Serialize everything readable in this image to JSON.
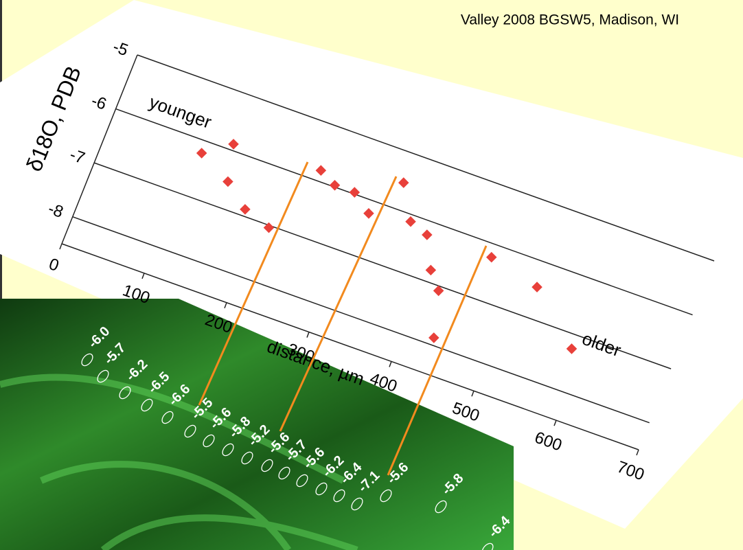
{
  "chart_data": {
    "type": "scatter",
    "title": "Valley 2008 BGSW5, Madison, WI",
    "y_label": "δ18O, PDB",
    "x_label": "distance, µm",
    "annotations": [
      "younger",
      "older"
    ],
    "x": [
      110,
      140,
      150,
      180,
      213,
      244,
      265,
      289,
      313,
      337,
      361,
      384,
      403,
      420,
      435,
      462,
      523,
      586
    ],
    "y": [
      -6.22,
      -5.89,
      -6.53,
      -6.88,
      -7.04,
      -5.81,
      -5.97,
      -5.97,
      -6.23,
      -5.53,
      -6.12,
      -6.24,
      -6.79,
      -7.08,
      -7.87,
      -6.23,
      -6.45,
      -7.25
    ],
    "color": "#e8403a",
    "xlim": [
      0,
      700
    ],
    "ylim": [
      -8.5,
      -5
    ],
    "xticks": [
      0,
      100,
      200,
      300,
      400,
      500,
      600,
      700
    ],
    "yticks": [
      -5,
      -6,
      -7,
      -8
    ],
    "grid": true
  },
  "image": {
    "spot_labels": [
      "-6.0",
      "-5.7",
      "-6.2",
      "-6.5",
      "-6.6",
      "-5.5",
      "-5.6",
      "-5.8",
      "-5.2",
      "-5.6",
      "-5.7",
      "-5.6",
      "-6.2",
      "-6.4",
      "-7.1",
      "-5.6",
      "-5.8",
      "-6.4"
    ]
  }
}
